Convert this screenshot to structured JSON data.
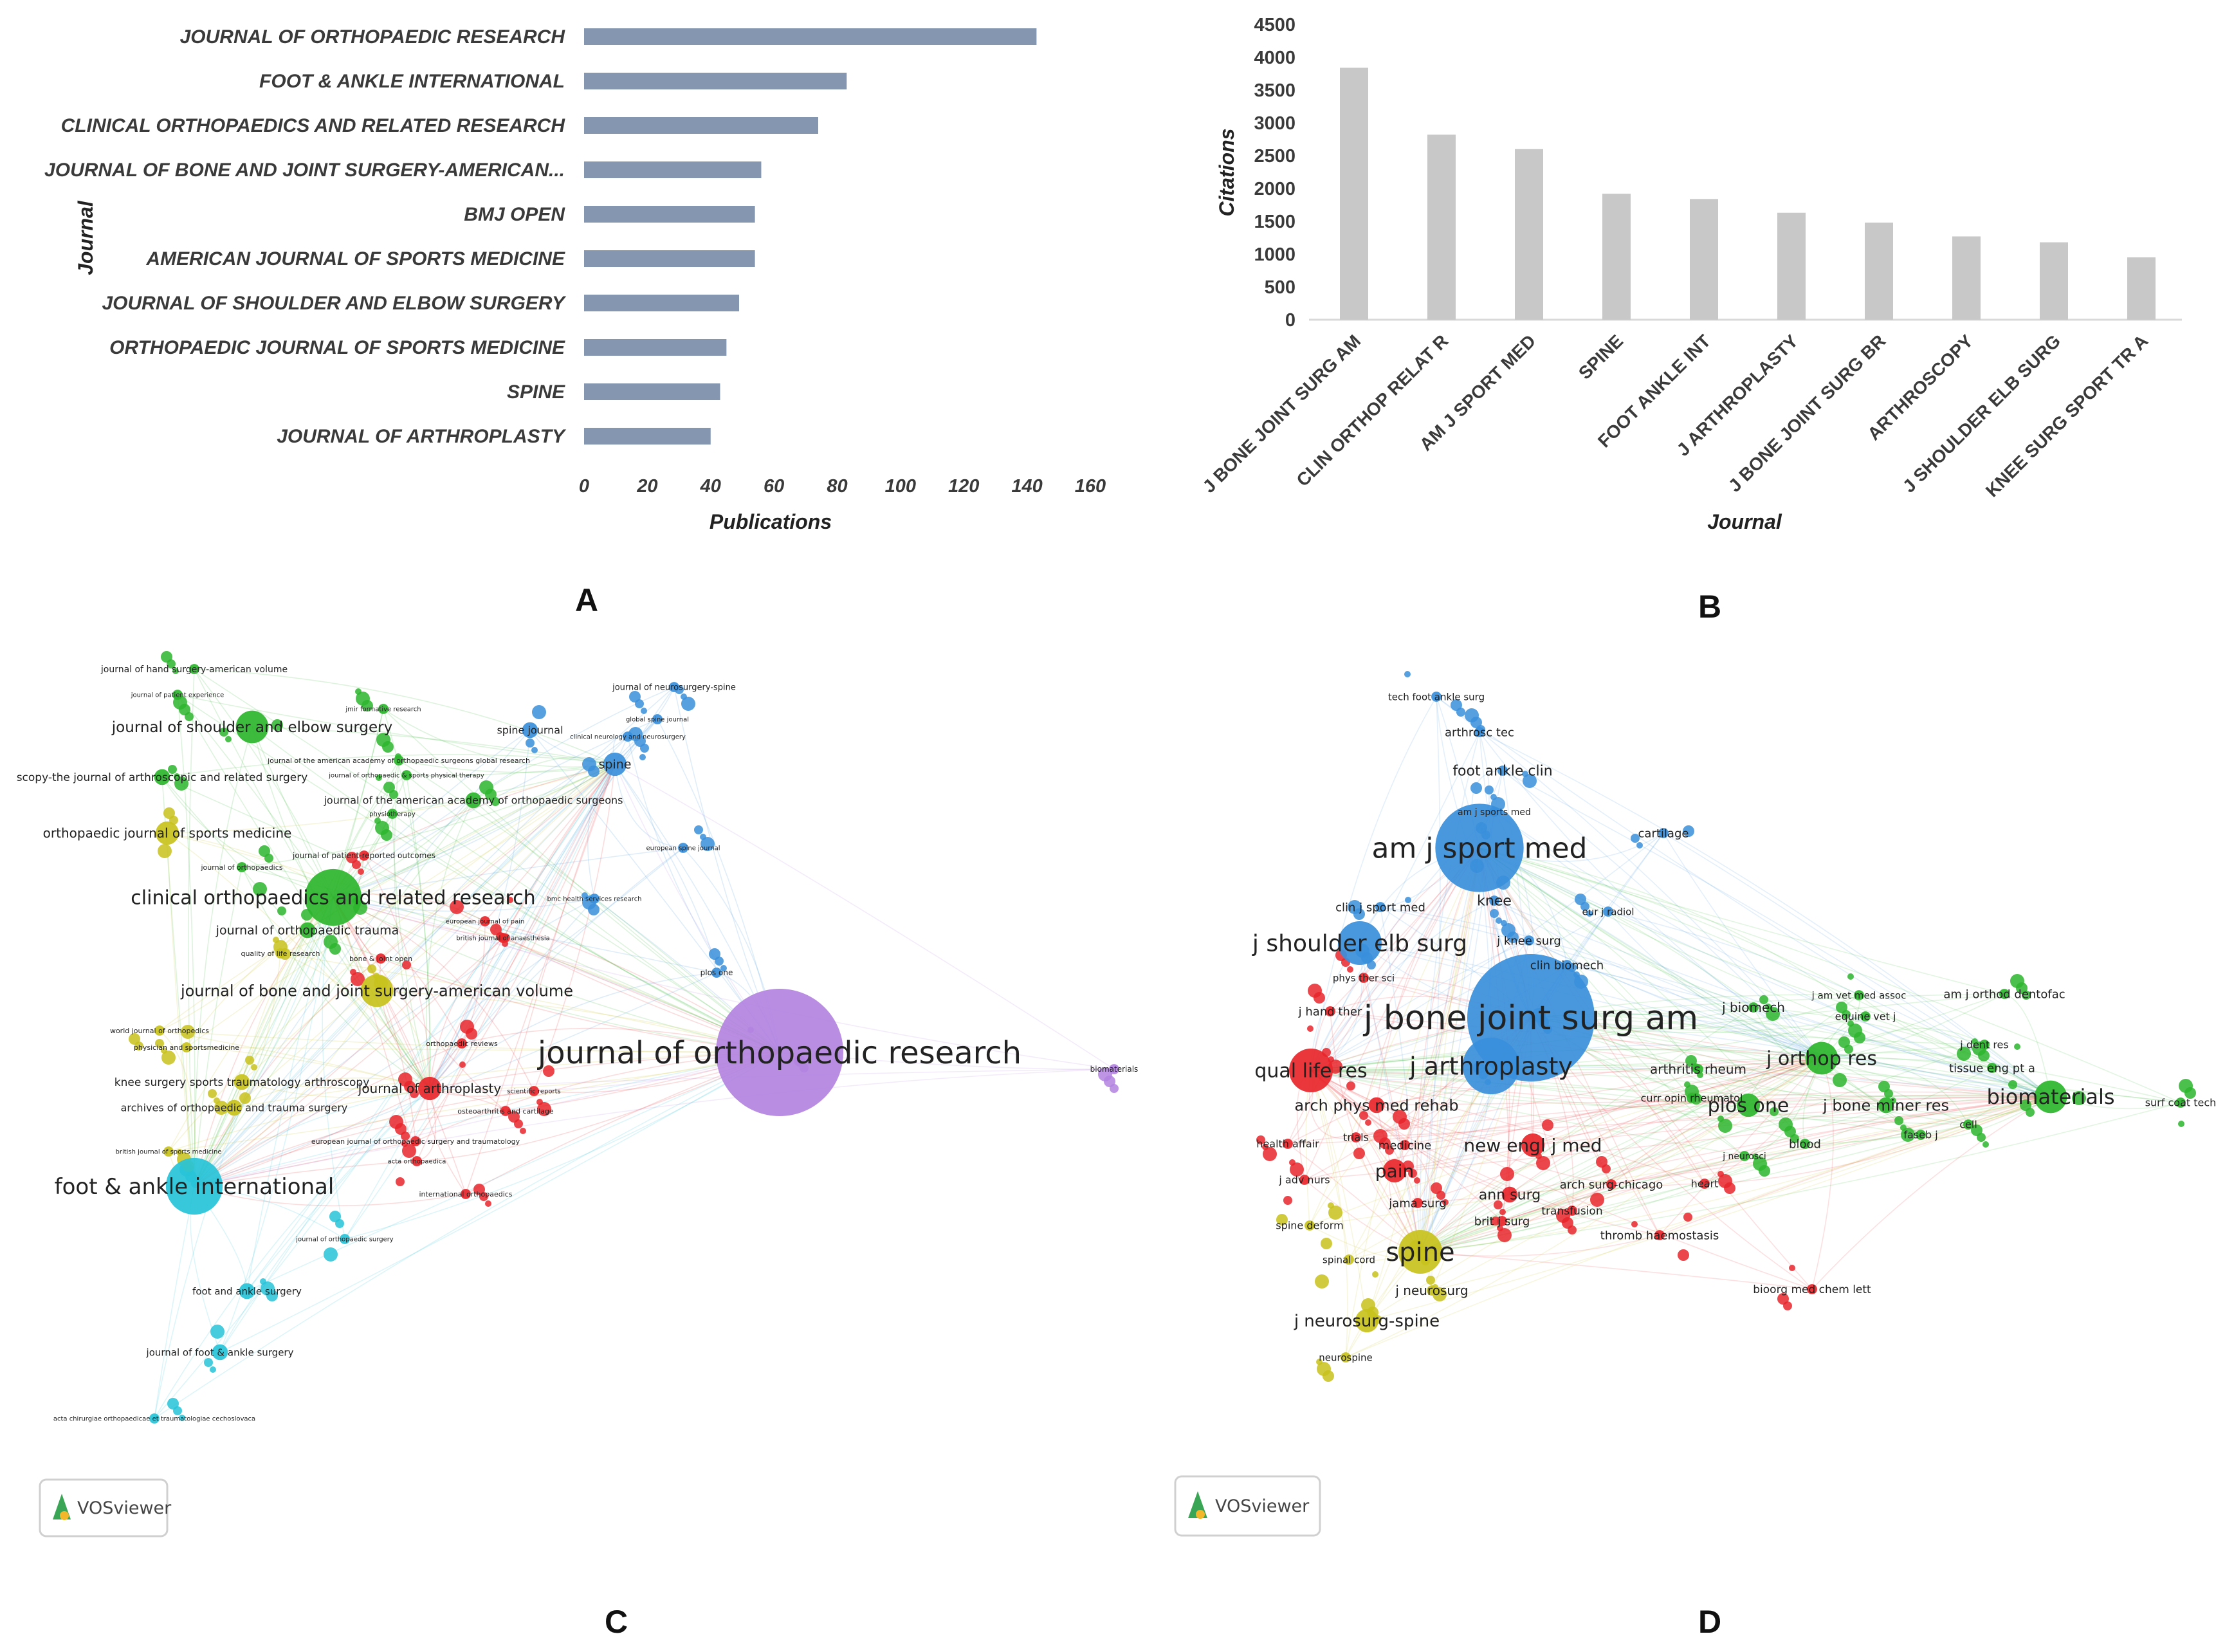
{
  "panels": {
    "a": "A",
    "b": "B",
    "c": "C",
    "d": "D"
  },
  "vos_label": "VOSviewer",
  "colors": {
    "bar_a": "#8496b0",
    "bar_b": "#c8c8c8",
    "purple": "#b383e0",
    "red": "#e8262b",
    "green": "#2db52d",
    "blue": "#3a8fdb",
    "yellow": "#c8c21c",
    "cyan": "#27c3d8"
  },
  "chart_data": [
    {
      "id": "A",
      "type": "bar",
      "orientation": "horizontal",
      "categories": [
        "JOURNAL OF ORTHOPAEDIC RESEARCH",
        "FOOT & ANKLE INTERNATIONAL",
        "CLINICAL ORTHOPAEDICS AND RELATED RESEARCH",
        "JOURNAL OF BONE AND JOINT SURGERY-AMERICAN...",
        "BMJ OPEN",
        "AMERICAN JOURNAL OF SPORTS MEDICINE",
        "JOURNAL OF SHOULDER AND ELBOW SURGERY",
        "ORTHOPAEDIC JOURNAL OF SPORTS MEDICINE",
        "SPINE",
        "JOURNAL OF ARTHROPLASTY"
      ],
      "values": [
        143,
        83,
        74,
        56,
        54,
        54,
        49,
        45,
        43,
        40
      ],
      "xlabel": "Publications",
      "ylabel": "Journal",
      "xlim": [
        0,
        160
      ],
      "xticks": [
        "0",
        "20",
        "40",
        "60",
        "80",
        "100",
        "120",
        "140",
        "160"
      ],
      "grid": false
    },
    {
      "id": "B",
      "type": "bar",
      "orientation": "vertical",
      "categories": [
        "J BONE JOINT SURG AM",
        "CLIN ORTHOP RELAT R",
        "AM J SPORT MED",
        "SPINE",
        "FOOT ANKLE INT",
        "J ARTHROPLASTY",
        "J BONE JOINT SURG BR",
        "ARTHROSCOPY",
        "J SHOULDER ELB SURG",
        "KNEE SURG SPORT TR A"
      ],
      "values": [
        3840,
        2820,
        2600,
        1920,
        1840,
        1630,
        1480,
        1270,
        1180,
        950
      ],
      "xlabel": "Journal",
      "ylabel": "Citations",
      "ylim": [
        0,
        4500
      ],
      "yticks": [
        "0",
        "500",
        "1000",
        "1500",
        "2000",
        "2500",
        "3000",
        "3500",
        "4000",
        "4500"
      ],
      "grid": false
    },
    {
      "id": "C",
      "type": "network",
      "nodes": [
        {
          "label": "journal of orthopaedic research",
          "cluster": "purple",
          "weight": 10
        },
        {
          "label": "foot & ankle international",
          "cluster": "cyan",
          "weight": 6
        },
        {
          "label": "clinical orthopaedics and related research",
          "cluster": "green",
          "weight": 6
        },
        {
          "label": "journal of bone and joint surgery-american volume",
          "cluster": "yellow",
          "weight": 4
        },
        {
          "label": "journal of shoulder and elbow surgery",
          "cluster": "green",
          "weight": 4
        },
        {
          "label": "orthopaedic journal of sports medicine",
          "cluster": "yellow",
          "weight": 3
        },
        {
          "label": "spine",
          "cluster": "blue",
          "weight": 3
        },
        {
          "label": "spine journal",
          "cluster": "blue",
          "weight": 2
        },
        {
          "label": "journal of hand surgery-american volume",
          "cluster": "green",
          "weight": 1
        },
        {
          "label": "journal of patient experience",
          "cluster": "green",
          "weight": 1
        },
        {
          "label": "jmir formative research",
          "cluster": "green",
          "weight": 1
        },
        {
          "label": "journal of neurosurgery-spine",
          "cluster": "blue",
          "weight": 1
        },
        {
          "label": "global spine journal",
          "cluster": "blue",
          "weight": 1
        },
        {
          "label": "clinical neurology and neurosurgery",
          "cluster": "blue",
          "weight": 1
        },
        {
          "label": "journal of the american academy of orthopaedic surgeons global research",
          "cluster": "green",
          "weight": 1
        },
        {
          "label": "scopy-the journal of arthroscopic and related surgery",
          "cluster": "green",
          "weight": 2
        },
        {
          "label": "journal of orthopaedic & sports physical therapy",
          "cluster": "green",
          "weight": 1
        },
        {
          "label": "journal of the american academy of orthopaedic surgeons",
          "cluster": "green",
          "weight": 2
        },
        {
          "label": "physiotherapy",
          "cluster": "green",
          "weight": 1
        },
        {
          "label": "european spine journal",
          "cluster": "blue",
          "weight": 1
        },
        {
          "label": "journal of patient-reported outcomes",
          "cluster": "red",
          "weight": 1
        },
        {
          "label": "journal of orthopaedics",
          "cluster": "green",
          "weight": 1
        },
        {
          "label": "bmc health services research",
          "cluster": "blue",
          "weight": 1
        },
        {
          "label": "european journal of pain",
          "cluster": "red",
          "weight": 1
        },
        {
          "label": "british journal of anaesthesia",
          "cluster": "red",
          "weight": 1
        },
        {
          "label": "journal of orthopaedic trauma",
          "cluster": "green",
          "weight": 2
        },
        {
          "label": "quality of life research",
          "cluster": "yellow",
          "weight": 1
        },
        {
          "label": "bone & joint open",
          "cluster": "red",
          "weight": 1
        },
        {
          "label": "plos one",
          "cluster": "blue",
          "weight": 1
        },
        {
          "label": "world journal of orthopedics",
          "cluster": "yellow",
          "weight": 1
        },
        {
          "label": "orthopaedic reviews",
          "cluster": "red",
          "weight": 1
        },
        {
          "label": "physician and sportsmedicine",
          "cluster": "yellow",
          "weight": 1
        },
        {
          "label": "knee surgery sports traumatology arthroscopy",
          "cluster": "yellow",
          "weight": 2
        },
        {
          "label": "journal of arthroplasty",
          "cluster": "red",
          "weight": 3
        },
        {
          "label": "scientific reports",
          "cluster": "red",
          "weight": 1
        },
        {
          "label": "archives of orthopaedic and trauma surgery",
          "cluster": "yellow",
          "weight": 2
        },
        {
          "label": "osteoarthritis and cartilage",
          "cluster": "red",
          "weight": 1
        },
        {
          "label": "european journal of orthopaedic surgery and traumatology",
          "cluster": "red",
          "weight": 1
        },
        {
          "label": "british journal of sports medicine",
          "cluster": "yellow",
          "weight": 1
        },
        {
          "label": "acta orthopaedica",
          "cluster": "red",
          "weight": 1
        },
        {
          "label": "international orthopaedics",
          "cluster": "red",
          "weight": 1
        },
        {
          "label": "journal of orthopaedic surgery",
          "cluster": "cyan",
          "weight": 1
        },
        {
          "label": "foot and ankle surgery",
          "cluster": "cyan",
          "weight": 2
        },
        {
          "label": "journal of foot & ankle surgery",
          "cluster": "cyan",
          "weight": 2
        },
        {
          "label": "acta chirurgiae orthopaedicae et traumatologiae cechoslovaca",
          "cluster": "cyan",
          "weight": 1
        },
        {
          "label": "biomaterials",
          "cluster": "purple",
          "weight": 1
        }
      ]
    },
    {
      "id": "D",
      "type": "network",
      "nodes": [
        {
          "label": "tech foot ankle surg",
          "cluster": "blue",
          "weight": 1
        },
        {
          "label": "arthrosc tec",
          "cluster": "blue",
          "weight": 1
        },
        {
          "label": "foot ankle clin",
          "cluster": "blue",
          "weight": 1
        },
        {
          "label": "am j sports med",
          "cluster": "blue",
          "weight": 1
        },
        {
          "label": "cartilage",
          "cluster": "blue",
          "weight": 1
        },
        {
          "label": "am j sport med",
          "cluster": "blue",
          "weight": 8
        },
        {
          "label": "clin j sport med",
          "cluster": "blue",
          "weight": 1
        },
        {
          "label": "knee",
          "cluster": "blue",
          "weight": 1
        },
        {
          "label": "eur j radiol",
          "cluster": "blue",
          "weight": 1
        },
        {
          "label": "j shoulder elb surg",
          "cluster": "blue",
          "weight": 5
        },
        {
          "label": "j knee surg",
          "cluster": "blue",
          "weight": 1
        },
        {
          "label": "clin biomech",
          "cluster": "blue",
          "weight": 1
        },
        {
          "label": "phys ther sci",
          "cluster": "red",
          "weight": 1
        },
        {
          "label": "j bone joint surg am",
          "cluster": "blue",
          "weight": 10
        },
        {
          "label": "j hand ther",
          "cluster": "red",
          "weight": 1
        },
        {
          "label": "j biomech",
          "cluster": "green",
          "weight": 1
        },
        {
          "label": "j am vet med assoc",
          "cluster": "green",
          "weight": 1
        },
        {
          "label": "am j orthod dentofac",
          "cluster": "green",
          "weight": 1
        },
        {
          "label": "equine vet j",
          "cluster": "green",
          "weight": 1
        },
        {
          "label": "qual life res",
          "cluster": "red",
          "weight": 5
        },
        {
          "label": "j arthroplasty",
          "cluster": "blue",
          "weight": 6
        },
        {
          "label": "j orthop res",
          "cluster": "green",
          "weight": 4
        },
        {
          "label": "j dent res",
          "cluster": "green",
          "weight": 1
        },
        {
          "label": "tissue eng pt a",
          "cluster": "green",
          "weight": 1
        },
        {
          "label": "arthritis rheum",
          "cluster": "green",
          "weight": 1
        },
        {
          "label": "arch phys med rehab",
          "cluster": "red",
          "weight": 2
        },
        {
          "label": "curr opin rheumatol",
          "cluster": "green",
          "weight": 1
        },
        {
          "label": "plos one",
          "cluster": "green",
          "weight": 3
        },
        {
          "label": "j bone miner res",
          "cluster": "green",
          "weight": 2
        },
        {
          "label": "biomaterials",
          "cluster": "green",
          "weight": 4
        },
        {
          "label": "surf coat tech",
          "cluster": "green",
          "weight": 1
        },
        {
          "label": "health affair",
          "cluster": "red",
          "weight": 1
        },
        {
          "label": "trials",
          "cluster": "red",
          "weight": 1
        },
        {
          "label": "medicine",
          "cluster": "red",
          "weight": 1
        },
        {
          "label": "new engl j med",
          "cluster": "red",
          "weight": 3
        },
        {
          "label": "faseb j",
          "cluster": "green",
          "weight": 1
        },
        {
          "label": "cell",
          "cluster": "green",
          "weight": 1
        },
        {
          "label": "blood",
          "cluster": "green",
          "weight": 1
        },
        {
          "label": "j neurosci",
          "cluster": "green",
          "weight": 1
        },
        {
          "label": "j adv nurs",
          "cluster": "red",
          "weight": 1
        },
        {
          "label": "pain",
          "cluster": "red",
          "weight": 3
        },
        {
          "label": "arch surg-chicago",
          "cluster": "red",
          "weight": 1
        },
        {
          "label": "heart",
          "cluster": "red",
          "weight": 1
        },
        {
          "label": "ann surg",
          "cluster": "red",
          "weight": 2
        },
        {
          "label": "jama surg",
          "cluster": "red",
          "weight": 1
        },
        {
          "label": "transfusion",
          "cluster": "red",
          "weight": 1
        },
        {
          "label": "spine deform",
          "cluster": "yellow",
          "weight": 1
        },
        {
          "label": "brit j surg",
          "cluster": "red",
          "weight": 1
        },
        {
          "label": "thromb haemostasis",
          "cluster": "red",
          "weight": 1
        },
        {
          "label": "spine",
          "cluster": "yellow",
          "weight": 5
        },
        {
          "label": "spinal cord",
          "cluster": "yellow",
          "weight": 1
        },
        {
          "label": "j neurosurg",
          "cluster": "yellow",
          "weight": 1
        },
        {
          "label": "bioorg med chem lett",
          "cluster": "red",
          "weight": 1
        },
        {
          "label": "j neurosurg-spine",
          "cluster": "yellow",
          "weight": 3
        },
        {
          "label": "neurospine",
          "cluster": "yellow",
          "weight": 1
        }
      ]
    }
  ]
}
